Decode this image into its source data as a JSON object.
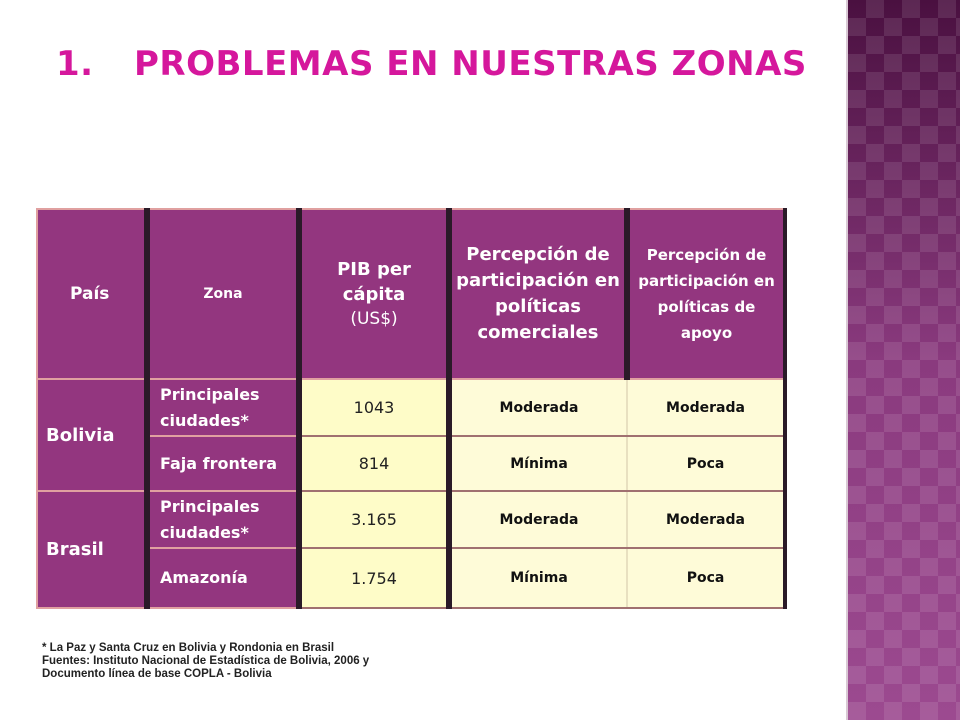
{
  "title": {
    "number": "1.",
    "text": "PROBLEMAS EN NUESTRAS ZONAS"
  },
  "colors": {
    "title": "#d5179c",
    "header_bg": "#93367f",
    "cell_bg": "#fefcc8",
    "sidebar": "#7a2d6b"
  },
  "table": {
    "headers": {
      "pais": "País",
      "zona": "Zona",
      "pib_line1": "PIB per",
      "pib_line2": "cápita",
      "pib_unit": "(US$)",
      "perc_comercial": "Percepción de participación en políticas comerciales",
      "perc_apoyo": "Percepción de participación en políticas de apoyo"
    },
    "groups": [
      {
        "country": "Bolivia",
        "rows": [
          {
            "zona": "Principales ciudades*",
            "pib": "1043",
            "comercial": "Moderada",
            "apoyo": "Moderada"
          },
          {
            "zona": "Faja frontera",
            "pib": "814",
            "comercial": "Mínima",
            "apoyo": "Poca"
          }
        ]
      },
      {
        "country": "Brasil",
        "rows": [
          {
            "zona": "Principales ciudades*",
            "pib": "3.165",
            "comercial": "Moderada",
            "apoyo": "Moderada"
          },
          {
            "zona": "Amazonía",
            "pib": "1.754",
            "comercial": "Mínima",
            "apoyo": "Poca"
          }
        ]
      }
    ]
  },
  "notes": {
    "line1": "* La Paz y Santa Cruz en Bolivia y Rondonia en Brasil",
    "line2": "Fuentes: Instituto Nacional de Estadística de Bolivia, 2006 y",
    "line3": "Documento línea de base COPLA - Bolivia"
  }
}
